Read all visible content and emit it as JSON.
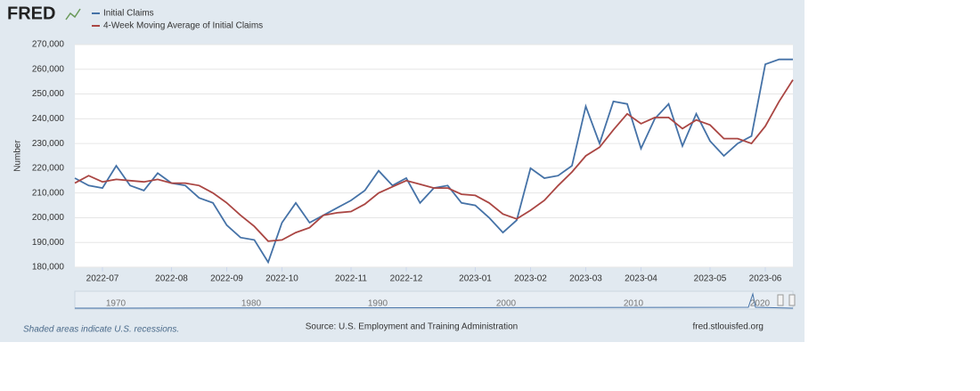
{
  "chart_data": {
    "type": "line",
    "logo": "FRED",
    "y_axis_label": "Number",
    "x": [
      "2022-06",
      "2022-06",
      "2022-07",
      "2022-07",
      "2022-07",
      "2022-07",
      "2022-07",
      "2022-08",
      "2022-08",
      "2022-08",
      "2022-08",
      "2022-09",
      "2022-09",
      "2022-09",
      "2022-09",
      "2022-10",
      "2022-10",
      "2022-10",
      "2022-10",
      "2022-10",
      "2022-11",
      "2022-11",
      "2022-11",
      "2022-11",
      "2022-12",
      "2022-12",
      "2022-12",
      "2022-12",
      "2022-12",
      "2023-01",
      "2023-01",
      "2023-01",
      "2023-01",
      "2023-02",
      "2023-02",
      "2023-02",
      "2023-02",
      "2023-03",
      "2023-03",
      "2023-03",
      "2023-03",
      "2023-04",
      "2023-04",
      "2023-04",
      "2023-04",
      "2023-04",
      "2023-05",
      "2023-05",
      "2023-05",
      "2023-05",
      "2023-06",
      "2023-06",
      "2023-06"
    ],
    "series": [
      {
        "name": "Initial Claims",
        "color": "#4572a7",
        "values": [
          216000,
          213000,
          212000,
          221000,
          213000,
          211000,
          218000,
          214000,
          213000,
          208000,
          206000,
          197000,
          192000,
          191000,
          182000,
          198000,
          206000,
          198000,
          201000,
          204000,
          207000,
          211000,
          219000,
          213000,
          216000,
          206000,
          212000,
          213000,
          206000,
          205000,
          200000,
          194000,
          199000,
          220000,
          216000,
          217000,
          221000,
          245000,
          230000,
          247000,
          246000,
          228000,
          240000,
          246000,
          229000,
          242000,
          231000,
          225000,
          230000,
          233000,
          262000,
          264000,
          264000
        ]
      },
      {
        "name": "4-Week Moving Average of Initial Claims",
        "color": "#aa4643",
        "values": [
          214000,
          217000,
          214500,
          215500,
          215000,
          214500,
          215500,
          214000,
          214000,
          213000,
          210000,
          206000,
          201000,
          196500,
          190500,
          191000,
          194000,
          196000,
          201000,
          202000,
          202500,
          205500,
          210000,
          212500,
          215000,
          213500,
          212000,
          212000,
          209500,
          209000,
          206000,
          201500,
          199500,
          203000,
          207000,
          213000,
          218500,
          225000,
          228500,
          235500,
          242000,
          238000,
          240500,
          240500,
          236000,
          239500,
          237500,
          232000,
          232000,
          230000,
          237000,
          247000,
          255750
        ]
      }
    ],
    "ylim": [
      180000,
      270000
    ],
    "yticks": [
      {
        "value": 180000,
        "label": "180,000"
      },
      {
        "value": 190000,
        "label": "190,000"
      },
      {
        "value": 200000,
        "label": "200,000"
      },
      {
        "value": 210000,
        "label": "210,000"
      },
      {
        "value": 220000,
        "label": "220,000"
      },
      {
        "value": 230000,
        "label": "230,000"
      },
      {
        "value": 240000,
        "label": "240,000"
      },
      {
        "value": 250000,
        "label": "250,000"
      },
      {
        "value": 260000,
        "label": "260,000"
      },
      {
        "value": 270000,
        "label": "270,000"
      }
    ],
    "xticks": [
      "2022-07",
      "2022-08",
      "2022-09",
      "2022-10",
      "2022-11",
      "2022-12",
      "2023-01",
      "2023-02",
      "2023-03",
      "2023-04",
      "2023-05",
      "2023-06"
    ],
    "grid": true,
    "navigator_labels": [
      "1970",
      "1980",
      "1990",
      "2000",
      "2010",
      "2020"
    ],
    "recession_note": "Shaded areas indicate U.S. recessions.",
    "source": "Source: U.S. Employment and Training Administration",
    "site": "fred.stlouisfed.org"
  }
}
